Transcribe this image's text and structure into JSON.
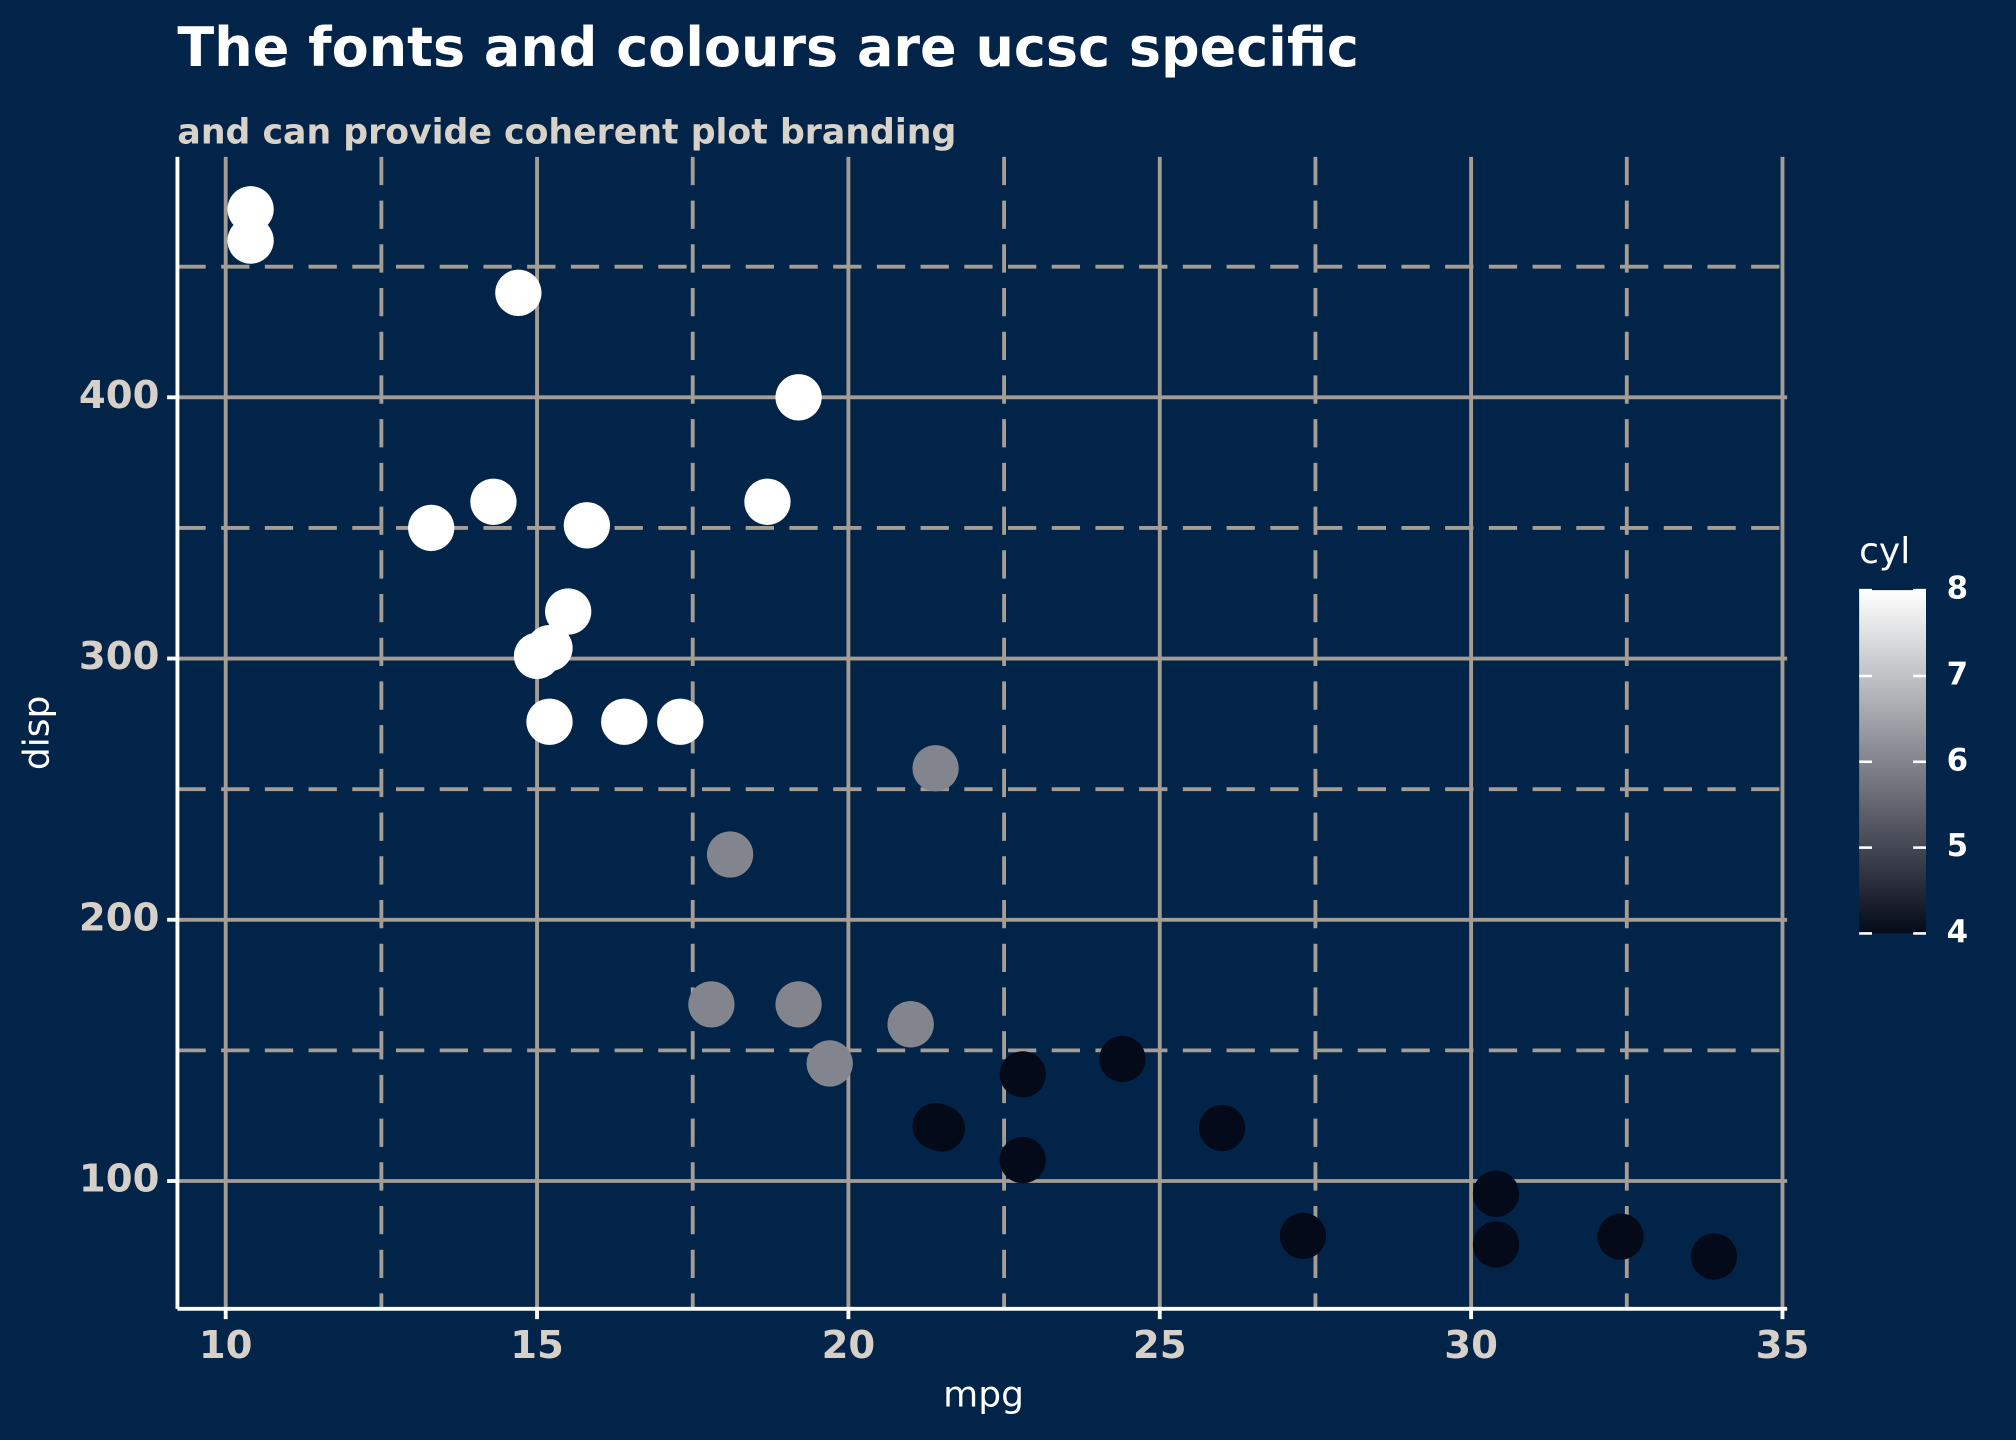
{
  "chart_data": {
    "type": "scatter",
    "title": "The fonts and colours are ucsc specific",
    "subtitle": "and can provide coherent plot branding",
    "xlabel": "mpg",
    "ylabel": "disp",
    "x": [
      21.0,
      21.0,
      22.8,
      21.4,
      18.7,
      18.1,
      14.3,
      24.4,
      22.8,
      19.2,
      17.8,
      16.4,
      17.3,
      15.2,
      10.4,
      10.4,
      14.7,
      32.4,
      30.4,
      33.9,
      21.5,
      15.5,
      15.2,
      13.3,
      19.2,
      27.3,
      26.0,
      30.4,
      15.8,
      19.7,
      15.0,
      21.4
    ],
    "y": [
      160,
      160,
      108,
      258,
      360,
      225,
      360,
      146.7,
      140.8,
      167.6,
      167.6,
      275.8,
      275.8,
      275.8,
      472,
      460,
      440,
      78.7,
      75.7,
      71.1,
      120.1,
      318,
      304,
      350,
      400,
      79,
      120.3,
      95.1,
      351,
      145,
      301,
      121
    ],
    "color_values": [
      6,
      6,
      4,
      6,
      8,
      6,
      8,
      4,
      4,
      6,
      6,
      8,
      8,
      8,
      8,
      8,
      8,
      4,
      4,
      4,
      4,
      8,
      8,
      8,
      8,
      4,
      4,
      4,
      8,
      6,
      8,
      4
    ],
    "color_label": "cyl",
    "color_lim": [
      4,
      8
    ],
    "color_low": "#050a1a",
    "color_high": "#ffffff",
    "color_ticks": [
      4,
      5,
      6,
      7,
      8
    ],
    "xlim": [
      9.225,
      35.075
    ],
    "xticks": [
      10,
      15,
      20,
      25,
      30,
      35
    ],
    "x_minor_ticks": [
      12.5,
      17.5,
      22.5,
      27.5,
      32.5
    ],
    "ylim": [
      51.055,
      492.045
    ],
    "yticks": [
      100,
      200,
      300,
      400
    ],
    "y_minor_ticks": [
      150,
      250,
      350,
      450
    ],
    "grid": true,
    "grid_color": "#a59d94"
  }
}
